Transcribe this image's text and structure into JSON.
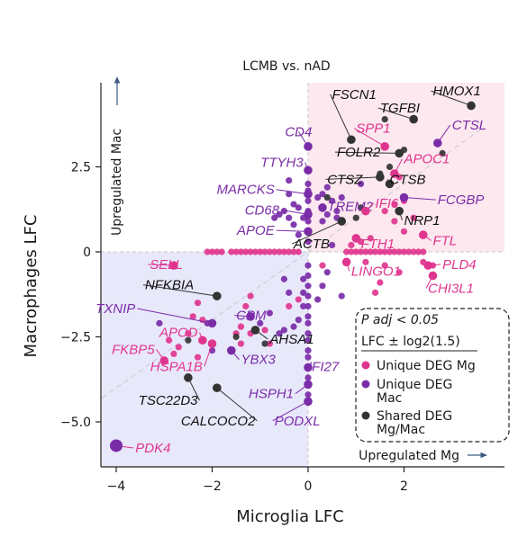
{
  "chart_data": {
    "type": "scatter",
    "title": "LCMB vs. nAD",
    "xlabel": "Microglia LFC",
    "ylabel": "Macrophages LFC",
    "xlim": [
      -4.3,
      3.6
    ],
    "ylim": [
      -6.3,
      4.9
    ],
    "xticks": [
      {
        "v": -4,
        "t": "−4"
      },
      {
        "v": -2,
        "t": "−2"
      },
      {
        "v": 0,
        "t": "0"
      },
      {
        "v": 2,
        "t": "2"
      }
    ],
    "yticks": [
      {
        "v": -5,
        "t": "−5.0"
      },
      {
        "v": -2.5,
        "t": "−2.5"
      },
      {
        "v": 0,
        "t": "0"
      },
      {
        "v": 2.5,
        "t": "2.5"
      }
    ],
    "up_mac_label": "Upregulated Mac",
    "up_mg_label": "Upregulated Mg",
    "colors": {
      "mg": "#e0358e",
      "mac": "#7a2ca8",
      "shared": "#333333",
      "quad_upper": "#fde8ef",
      "quad_lower": "#e8e8fb"
    },
    "legend": {
      "items": [
        {
          "label": "P adj < 0.05",
          "color": ""
        },
        {
          "label": "LFC ± log2(1.5)",
          "color": ""
        },
        {
          "label": "Unique DEG Mg",
          "color": "#e0358e"
        },
        {
          "label": "Unique DEG Mac",
          "color": "#7a2ca8"
        },
        {
          "label": "Shared DEG Mg/Mac",
          "color": "#333333"
        }
      ]
    },
    "series": [
      {
        "group": "mg",
        "points": [
          [
            -2.1,
            0
          ],
          [
            -2,
            0
          ],
          [
            -1.9,
            0
          ],
          [
            -1.8,
            0
          ],
          [
            -1.6,
            0
          ],
          [
            -1.5,
            0
          ],
          [
            -1.4,
            0
          ],
          [
            -1.3,
            0
          ],
          [
            -1.2,
            0
          ],
          [
            -1.1,
            0
          ],
          [
            -1,
            0
          ],
          [
            -0.9,
            0
          ],
          [
            -0.8,
            0
          ],
          [
            -0.7,
            0
          ],
          [
            -0.6,
            0
          ],
          [
            -0.5,
            0
          ],
          [
            -0.4,
            0
          ],
          [
            -0.3,
            0
          ],
          [
            -0.2,
            0
          ],
          [
            0.8,
            0
          ],
          [
            0.9,
            0
          ],
          [
            1,
            0
          ],
          [
            1.1,
            0
          ],
          [
            1.2,
            0
          ],
          [
            1.3,
            0
          ],
          [
            1.4,
            0
          ],
          [
            1.5,
            0
          ],
          [
            1.6,
            0
          ],
          [
            1.7,
            0
          ],
          [
            1.8,
            0
          ],
          [
            1.9,
            0
          ],
          [
            2.0,
            0
          ],
          [
            2.1,
            0
          ],
          [
            2.2,
            0
          ],
          [
            2.3,
            0
          ],
          [
            2.4,
            0
          ],
          [
            0.9,
            0.2
          ],
          [
            1.1,
            0.3
          ],
          [
            1.3,
            0.4
          ],
          [
            1.6,
            1.2
          ],
          [
            1.8,
            1.4
          ],
          [
            2.0,
            1.5
          ],
          [
            2.2,
            1.0
          ],
          [
            2.0,
            0.6
          ],
          [
            1.8,
            0.9
          ],
          [
            2.4,
            -0.3
          ],
          [
            2.6,
            -0.4
          ],
          [
            1.9,
            -0.6
          ],
          [
            1.6,
            -0.4
          ],
          [
            1.5,
            -0.9
          ],
          [
            1.4,
            -1.2
          ],
          [
            -2.3,
            -1.5
          ],
          [
            -2.4,
            -1.9
          ],
          [
            -2.5,
            -2.4
          ],
          [
            -2.7,
            -2.8
          ],
          [
            -2.2,
            -2.0
          ],
          [
            -1.2,
            -1.3
          ],
          [
            -1.3,
            -1.6
          ],
          [
            -1.4,
            -2.2
          ],
          [
            -1.5,
            -2.4
          ],
          [
            -1.6,
            -2.9
          ],
          [
            -0.2,
            -1.4
          ],
          [
            -0.4,
            -1.6
          ],
          [
            -0.9,
            -2.3
          ],
          [
            -1.2,
            -2.4
          ],
          [
            -1.4,
            -2.7
          ],
          [
            -0.8,
            -2.7
          ],
          [
            -2.2,
            -2.6
          ],
          [
            -2.3,
            -3.1
          ],
          [
            -2.8,
            -3.0
          ],
          [
            -3.0,
            -3.2
          ],
          [
            -2.9,
            -2.6
          ],
          [
            0.3,
            -0.4
          ],
          [
            0.8,
            -0.3
          ],
          [
            1.9,
            2.2
          ],
          [
            1.2,
            -0.3
          ]
        ]
      },
      {
        "group": "mac",
        "points": [
          [
            0,
            0.3
          ],
          [
            0,
            0.6
          ],
          [
            0,
            0.9
          ],
          [
            0,
            1.2
          ],
          [
            0,
            1.5
          ],
          [
            0,
            1.8
          ],
          [
            0,
            2.0
          ],
          [
            0.0,
            2.4
          ],
          [
            -0.1,
            1.0
          ],
          [
            -0.2,
            1.3
          ],
          [
            -0.3,
            1.4
          ],
          [
            -0.4,
            1.0
          ],
          [
            -0.5,
            1.2
          ],
          [
            -0.6,
            1.1
          ],
          [
            -0.3,
            0.8
          ],
          [
            -0.2,
            0.5
          ],
          [
            0.2,
            1.6
          ],
          [
            0.3,
            1.3
          ],
          [
            0.3,
            1.7
          ],
          [
            0.4,
            1.9
          ],
          [
            0.4,
            1.1
          ],
          [
            0.5,
            1.5
          ],
          [
            0.6,
            1.2
          ],
          [
            0.7,
            1.6
          ],
          [
            0.3,
            0.9
          ],
          [
            -0.7,
            1.0
          ],
          [
            -0.4,
            1.7
          ],
          [
            0,
            -0.4
          ],
          [
            0,
            -0.7
          ],
          [
            0,
            -1.0
          ],
          [
            0,
            -1.3
          ],
          [
            0,
            -1.6
          ],
          [
            0,
            -1.9
          ],
          [
            0,
            -2.1
          ],
          [
            0,
            -2.4
          ],
          [
            0,
            -2.6
          ],
          [
            0,
            -2.9
          ],
          [
            0,
            -3.1
          ],
          [
            0,
            -3.4
          ],
          [
            0,
            -3.7
          ],
          [
            0,
            -3.9
          ],
          [
            0,
            -4.2
          ],
          [
            0,
            -4.4
          ],
          [
            -0.1,
            -0.8
          ],
          [
            -0.1,
            -1.2
          ],
          [
            -0.1,
            -1.6
          ],
          [
            -0.2,
            -2.0
          ],
          [
            -0.3,
            -2.2
          ],
          [
            -0.5,
            -2.3
          ],
          [
            -0.6,
            -2.4
          ],
          [
            -0.4,
            -1.2
          ],
          [
            -0.5,
            -0.8
          ],
          [
            -0.8,
            -1.8
          ],
          [
            -1.0,
            -2.1
          ],
          [
            -1.2,
            -1.9
          ],
          [
            0.3,
            -1.0
          ],
          [
            0.2,
            -1.4
          ],
          [
            0.4,
            -0.6
          ],
          [
            0.7,
            -1.3
          ],
          [
            0.6,
            1.0
          ],
          [
            -2.0,
            -2.9
          ],
          [
            -2.1,
            -2.1
          ],
          [
            -4.0,
            -5.7
          ],
          [
            -3.1,
            -2.1
          ],
          [
            1.1,
            2.0
          ],
          [
            2.7,
            3.2
          ],
          [
            -0.0,
            3.1
          ],
          [
            -0.4,
            2.1
          ],
          [
            0.5,
            0.2
          ]
        ]
      },
      {
        "group": "shared",
        "points": [
          [
            3.4,
            4.3
          ],
          [
            2.2,
            3.9
          ],
          [
            1.6,
            3.9
          ],
          [
            2.0,
            3.0
          ],
          [
            2.8,
            2.9
          ],
          [
            1.7,
            2.5
          ],
          [
            1.5,
            2.3
          ],
          [
            1.7,
            2.0
          ],
          [
            1.1,
            1.3
          ],
          [
            1.0,
            1.0
          ],
          [
            1.9,
            1.2
          ],
          [
            0.7,
            0.9
          ],
          [
            -1.9,
            -1.3
          ],
          [
            -2.0,
            -2.7
          ],
          [
            -2.5,
            -2.6
          ],
          [
            -1.5,
            -2.5
          ],
          [
            -2.5,
            -3.7
          ],
          [
            -1.9,
            -4.0
          ],
          [
            -1.1,
            -2.3
          ],
          [
            -0.9,
            -2.7
          ],
          [
            0.4,
            1.6
          ]
        ]
      }
    ],
    "labels": [
      {
        "text": "HMOX1",
        "group": "shared",
        "tx": 2.6,
        "ty": 4.6,
        "px": 3.4,
        "py": 4.3,
        "anchor": "start"
      },
      {
        "text": "FSCN1",
        "group": "shared",
        "tx": 0.5,
        "ty": 4.5,
        "px": 0.9,
        "py": 3.3,
        "anchor": "start"
      },
      {
        "text": "TGFBI",
        "group": "shared",
        "tx": 1.5,
        "ty": 4.1,
        "px": 2.2,
        "py": 3.9,
        "anchor": "start"
      },
      {
        "text": "SPP1",
        "group": "mg",
        "tx": 1.0,
        "ty": 3.5,
        "px": 1.6,
        "py": 3.1,
        "anchor": "start"
      },
      {
        "text": "CTSL",
        "group": "mac",
        "tx": 3.0,
        "ty": 3.6,
        "px": 2.7,
        "py": 3.2,
        "anchor": "start"
      },
      {
        "text": "CD4",
        "group": "mac",
        "tx": -0.2,
        "ty": 3.4,
        "px": 0.0,
        "py": 3.1,
        "anchor": "middle"
      },
      {
        "text": "FOLR2",
        "group": "shared",
        "tx": 0.6,
        "ty": 2.8,
        "px": 1.9,
        "py": 2.9,
        "anchor": "start"
      },
      {
        "text": "APOC1",
        "group": "mg",
        "tx": 2.0,
        "ty": 2.6,
        "px": 1.8,
        "py": 2.3,
        "anchor": "start"
      },
      {
        "text": "TTYH3",
        "group": "mac",
        "tx": -0.1,
        "ty": 2.5,
        "px": 0.0,
        "py": 2.4,
        "anchor": "end"
      },
      {
        "text": "CTSZ",
        "group": "shared",
        "tx": 0.4,
        "ty": 2.0,
        "px": 1.5,
        "py": 2.2,
        "anchor": "start"
      },
      {
        "text": "CTSB",
        "group": "shared",
        "tx": 1.7,
        "ty": 2.0,
        "px": 1.7,
        "py": 2.0,
        "anchor": "start"
      },
      {
        "text": "MARCKS",
        "group": "mac",
        "tx": -0.7,
        "ty": 1.7,
        "px": 0.0,
        "py": 1.7,
        "anchor": "end"
      },
      {
        "text": "FCGBP",
        "group": "mac",
        "tx": 2.7,
        "ty": 1.4,
        "px": 2.0,
        "py": 1.6,
        "anchor": "start"
      },
      {
        "text": "TREM2",
        "group": "mac",
        "tx": 0.4,
        "ty": 1.2,
        "px": 0.3,
        "py": 1.3,
        "anchor": "start"
      },
      {
        "text": "IFI6",
        "group": "mg",
        "tx": 1.4,
        "ty": 1.3,
        "px": 1.2,
        "py": 1.2,
        "anchor": "start"
      },
      {
        "text": "CD68",
        "group": "mac",
        "tx": -0.6,
        "ty": 1.1,
        "px": 0.0,
        "py": 1.1,
        "anchor": "end"
      },
      {
        "text": "NRP1",
        "group": "shared",
        "tx": 2.0,
        "ty": 0.8,
        "px": 1.9,
        "py": 1.2,
        "anchor": "start"
      },
      {
        "text": "APOE",
        "group": "mac",
        "tx": -0.7,
        "ty": 0.5,
        "px": 0.0,
        "py": 0.6,
        "anchor": "end"
      },
      {
        "text": "ACTB",
        "group": "shared",
        "tx": -0.3,
        "ty": 0.1,
        "px": 0.7,
        "py": 0.9,
        "anchor": "start"
      },
      {
        "text": "FTH1",
        "group": "mg",
        "tx": 1.1,
        "ty": 0.1,
        "px": 1.0,
        "py": 0.4,
        "anchor": "start"
      },
      {
        "text": "FTL",
        "group": "mg",
        "tx": 2.6,
        "ty": 0.2,
        "px": 2.4,
        "py": 0.5,
        "anchor": "start"
      },
      {
        "text": "PLD4",
        "group": "mg",
        "tx": 2.8,
        "ty": -0.5,
        "px": 2.5,
        "py": -0.4,
        "anchor": "start"
      },
      {
        "text": "LINGO1",
        "group": "mg",
        "tx": 0.9,
        "ty": -0.7,
        "px": 0.8,
        "py": -0.3,
        "anchor": "start"
      },
      {
        "text": "CHI3L1",
        "group": "mg",
        "tx": 2.5,
        "ty": -1.2,
        "px": 2.6,
        "py": -0.7,
        "anchor": "start"
      },
      {
        "text": "SELL",
        "group": "mg",
        "tx": -3.3,
        "ty": -0.5,
        "px": -2.8,
        "py": -0.4,
        "anchor": "start"
      },
      {
        "text": "NFKBIA",
        "group": "shared",
        "tx": -3.4,
        "ty": -1.1,
        "px": -1.9,
        "py": -1.3,
        "anchor": "start"
      },
      {
        "text": "TXNIP",
        "group": "mac",
        "tx": -3.6,
        "ty": -1.8,
        "px": -2.0,
        "py": -2.1,
        "anchor": "end"
      },
      {
        "text": "CPM",
        "group": "mac",
        "tx": -1.5,
        "ty": -2.0,
        "px": -1.2,
        "py": -1.9,
        "anchor": "start"
      },
      {
        "text": "APOD",
        "group": "mg",
        "tx": -2.3,
        "ty": -2.5,
        "px": -2.2,
        "py": -2.6,
        "anchor": "end"
      },
      {
        "text": "AHSA1",
        "group": "shared",
        "tx": -0.8,
        "ty": -2.7,
        "px": -1.1,
        "py": -2.3,
        "anchor": "start"
      },
      {
        "text": "FKBP5",
        "group": "mg",
        "tx": -3.2,
        "ty": -3.0,
        "px": -3.0,
        "py": -3.2,
        "anchor": "end"
      },
      {
        "text": "HSPA1B",
        "group": "mg",
        "tx": -2.2,
        "ty": -3.5,
        "px": -2.0,
        "py": -2.7,
        "anchor": "end"
      },
      {
        "text": "YBX3",
        "group": "mac",
        "tx": -1.4,
        "ty": -3.3,
        "px": -1.6,
        "py": -2.9,
        "anchor": "start"
      },
      {
        "text": "IFI27",
        "group": "mac",
        "tx": 0.0,
        "ty": -3.5,
        "px": 0.0,
        "py": -3.4,
        "anchor": "start"
      },
      {
        "text": "TSC22D3",
        "group": "shared",
        "tx": -2.3,
        "ty": -4.5,
        "px": -2.5,
        "py": -3.7,
        "anchor": "end"
      },
      {
        "text": "HSPH1",
        "group": "mac",
        "tx": -0.3,
        "ty": -4.3,
        "px": 0.0,
        "py": -3.9,
        "anchor": "end"
      },
      {
        "text": "CALCOCO2",
        "group": "shared",
        "tx": -1.1,
        "ty": -5.1,
        "px": -1.9,
        "py": -4.0,
        "anchor": "end"
      },
      {
        "text": "PODXL",
        "group": "mac",
        "tx": -0.7,
        "ty": -5.1,
        "px": 0.0,
        "py": -4.4,
        "anchor": "start"
      },
      {
        "text": "PDK4",
        "group": "mg",
        "tx": -3.6,
        "ty": -5.9,
        "px": -4.0,
        "py": -5.7,
        "anchor": "start"
      }
    ]
  }
}
